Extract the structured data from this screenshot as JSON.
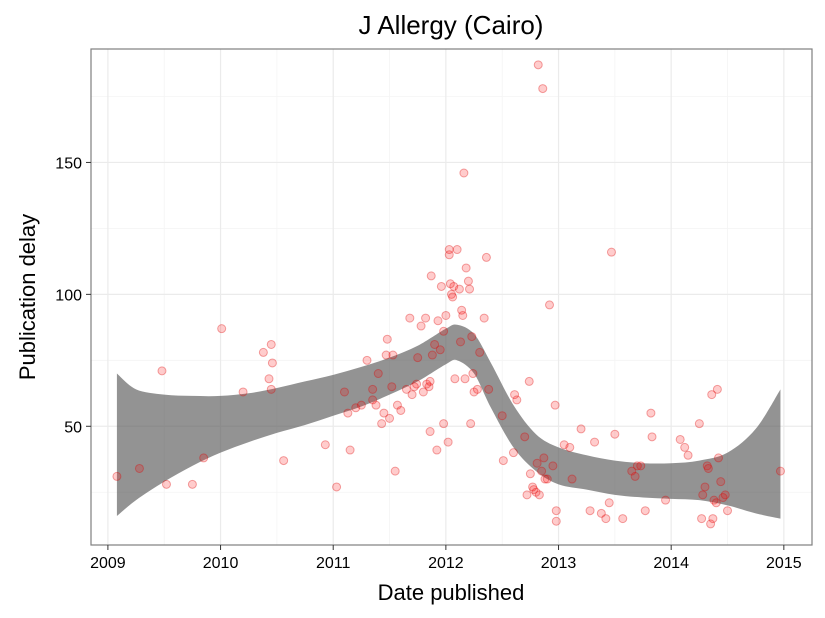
{
  "chart_data": {
    "type": "scatter",
    "title": "J Allergy (Cairo)",
    "xlabel": "Date published",
    "ylabel": "Publication delay",
    "xlim": [
      2008.85,
      2015.25
    ],
    "ylim": [
      5,
      193
    ],
    "x_ticks": [
      2009,
      2010,
      2011,
      2012,
      2013,
      2014,
      2015
    ],
    "y_ticks": [
      50,
      100,
      150
    ],
    "grid": true,
    "colors": {
      "points": "#ff0000",
      "band": "#595959"
    },
    "points": [
      [
        2009.08,
        31
      ],
      [
        2009.28,
        34
      ],
      [
        2009.48,
        71
      ],
      [
        2009.52,
        28
      ],
      [
        2009.75,
        28
      ],
      [
        2009.85,
        38
      ],
      [
        2010.01,
        87
      ],
      [
        2010.2,
        63
      ],
      [
        2010.38,
        78
      ],
      [
        2010.43,
        68
      ],
      [
        2010.45,
        81
      ],
      [
        2010.46,
        74
      ],
      [
        2010.45,
        64
      ],
      [
        2010.56,
        37
      ],
      [
        2010.93,
        43
      ],
      [
        2011.03,
        27
      ],
      [
        2011.1,
        63
      ],
      [
        2011.13,
        55
      ],
      [
        2011.15,
        41
      ],
      [
        2011.2,
        57
      ],
      [
        2011.25,
        58
      ],
      [
        2011.3,
        75
      ],
      [
        2011.35,
        60
      ],
      [
        2011.35,
        64
      ],
      [
        2011.38,
        58
      ],
      [
        2011.4,
        70
      ],
      [
        2011.43,
        51
      ],
      [
        2011.45,
        55
      ],
      [
        2011.47,
        77
      ],
      [
        2011.48,
        83
      ],
      [
        2011.5,
        53
      ],
      [
        2011.52,
        65
      ],
      [
        2011.53,
        77
      ],
      [
        2011.55,
        33
      ],
      [
        2011.57,
        58
      ],
      [
        2011.6,
        56
      ],
      [
        2011.65,
        64
      ],
      [
        2011.68,
        91
      ],
      [
        2011.7,
        62
      ],
      [
        2011.72,
        65
      ],
      [
        2011.74,
        66
      ],
      [
        2011.75,
        76
      ],
      [
        2011.78,
        88
      ],
      [
        2011.8,
        63
      ],
      [
        2011.82,
        91
      ],
      [
        2011.83,
        66
      ],
      [
        2011.85,
        65
      ],
      [
        2011.86,
        67
      ],
      [
        2011.86,
        48
      ],
      [
        2011.87,
        107
      ],
      [
        2011.88,
        77
      ],
      [
        2011.9,
        81
      ],
      [
        2011.92,
        41
      ],
      [
        2011.93,
        90
      ],
      [
        2011.95,
        79
      ],
      [
        2011.96,
        103
      ],
      [
        2011.98,
        86
      ],
      [
        2011.98,
        51
      ],
      [
        2012,
        92
      ],
      [
        2012.02,
        44
      ],
      [
        2012.03,
        115
      ],
      [
        2012.03,
        117
      ],
      [
        2012.04,
        104
      ],
      [
        2012.05,
        100
      ],
      [
        2012.06,
        99
      ],
      [
        2012.07,
        103
      ],
      [
        2012.08,
        68
      ],
      [
        2012.1,
        117
      ],
      [
        2012.12,
        102
      ],
      [
        2012.13,
        82
      ],
      [
        2012.14,
        94
      ],
      [
        2012.15,
        92
      ],
      [
        2012.16,
        146
      ],
      [
        2012.17,
        68
      ],
      [
        2012.18,
        110
      ],
      [
        2012.2,
        105
      ],
      [
        2012.21,
        102
      ],
      [
        2012.22,
        51
      ],
      [
        2012.23,
        84
      ],
      [
        2012.24,
        70
      ],
      [
        2012.25,
        63
      ],
      [
        2012.28,
        64
      ],
      [
        2012.3,
        78
      ],
      [
        2012.34,
        91
      ],
      [
        2012.36,
        114
      ],
      [
        2012.38,
        64
      ],
      [
        2012.5,
        54
      ],
      [
        2012.51,
        37
      ],
      [
        2012.6,
        40
      ],
      [
        2012.61,
        62
      ],
      [
        2012.63,
        60
      ],
      [
        2012.7,
        46
      ],
      [
        2012.72,
        24
      ],
      [
        2012.74,
        67
      ],
      [
        2012.75,
        32
      ],
      [
        2012.77,
        27
      ],
      [
        2012.78,
        26
      ],
      [
        2012.8,
        25
      ],
      [
        2012.81,
        36
      ],
      [
        2012.82,
        187
      ],
      [
        2012.83,
        24
      ],
      [
        2012.85,
        33
      ],
      [
        2012.86,
        178
      ],
      [
        2012.87,
        38
      ],
      [
        2012.88,
        30
      ],
      [
        2012.9,
        30
      ],
      [
        2012.92,
        96
      ],
      [
        2012.95,
        35
      ],
      [
        2012.97,
        58
      ],
      [
        2012.98,
        14
      ],
      [
        2012.98,
        18
      ],
      [
        2013.05,
        43
      ],
      [
        2013.1,
        42
      ],
      [
        2013.12,
        30
      ],
      [
        2013.2,
        49
      ],
      [
        2013.28,
        18
      ],
      [
        2013.32,
        44
      ],
      [
        2013.38,
        17
      ],
      [
        2013.42,
        15
      ],
      [
        2013.45,
        21
      ],
      [
        2013.47,
        116
      ],
      [
        2013.5,
        47
      ],
      [
        2013.57,
        15
      ],
      [
        2013.65,
        33
      ],
      [
        2013.68,
        31
      ],
      [
        2013.7,
        35
      ],
      [
        2013.73,
        35
      ],
      [
        2013.77,
        18
      ],
      [
        2013.82,
        55
      ],
      [
        2013.83,
        46
      ],
      [
        2013.95,
        22
      ],
      [
        2014.08,
        45
      ],
      [
        2014.12,
        42
      ],
      [
        2014.15,
        39
      ],
      [
        2014.25,
        51
      ],
      [
        2014.27,
        15
      ],
      [
        2014.28,
        24
      ],
      [
        2014.3,
        27
      ],
      [
        2014.32,
        35
      ],
      [
        2014.33,
        34
      ],
      [
        2014.35,
        13
      ],
      [
        2014.36,
        62
      ],
      [
        2014.37,
        15
      ],
      [
        2014.38,
        22
      ],
      [
        2014.4,
        21
      ],
      [
        2014.41,
        64
      ],
      [
        2014.42,
        38
      ],
      [
        2014.44,
        29
      ],
      [
        2014.46,
        23
      ],
      [
        2014.48,
        24
      ],
      [
        2014.5,
        18
      ],
      [
        2014.97,
        33
      ]
    ],
    "smooth_band": {
      "x": [
        2009.08,
        2009.25,
        2009.5,
        2009.75,
        2010,
        2010.25,
        2010.5,
        2010.75,
        2011,
        2011.25,
        2011.5,
        2011.75,
        2012,
        2012.1,
        2012.25,
        2012.4,
        2012.6,
        2012.8,
        2013,
        2013.25,
        2013.5,
        2013.75,
        2014,
        2014.25,
        2014.5,
        2014.75,
        2014.97
      ],
      "upper": [
        70,
        64,
        62,
        61.5,
        61.5,
        62.5,
        64.5,
        67,
        69.5,
        72.5,
        76,
        80.5,
        87,
        88.5,
        85,
        74,
        58,
        47,
        42,
        39,
        37,
        36,
        36,
        37,
        40,
        49,
        64
      ],
      "lower": [
        16,
        22,
        29,
        35,
        40,
        44,
        47.5,
        50.5,
        54,
        57.5,
        62,
        67,
        73.5,
        75,
        70,
        57,
        42,
        33,
        28,
        26,
        24,
        23,
        22.5,
        22,
        20,
        17,
        15
      ]
    }
  }
}
